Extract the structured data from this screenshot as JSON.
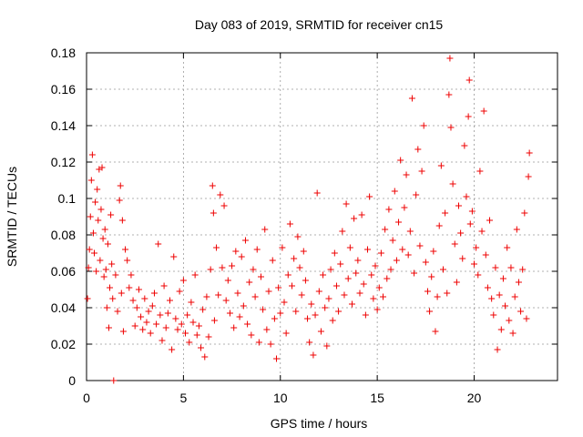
{
  "chart_data": {
    "type": "scatter",
    "title": "Day 083 of 2019, SRMTID for receiver cn15",
    "xlabel": "GPS time / hours",
    "ylabel": "SRMTID / TECUs",
    "xlim": [
      0,
      24.3
    ],
    "ylim": [
      0,
      0.18
    ],
    "xticks": [
      0,
      5,
      10,
      15,
      20
    ],
    "xtick_labels": [
      "0",
      "5",
      "10",
      "15",
      "20"
    ],
    "yticks": [
      0,
      0.02,
      0.04,
      0.06,
      0.08,
      0.1,
      0.12,
      0.14,
      0.16,
      0.18
    ],
    "ytick_labels": [
      "0",
      "0.02",
      "0.04",
      "0.06",
      "0.08",
      "0.1",
      "0.12",
      "0.14",
      "0.16",
      "0.18"
    ],
    "grid": true,
    "marker": "+",
    "color": "#ee0000",
    "series": [
      {
        "name": "SRMTID",
        "points": [
          [
            0.05,
            0.045
          ],
          [
            0.1,
            0.062
          ],
          [
            0.15,
            0.072
          ],
          [
            0.2,
            0.09
          ],
          [
            0.25,
            0.11
          ],
          [
            0.3,
            0.124
          ],
          [
            0.35,
            0.081
          ],
          [
            0.4,
            0.07
          ],
          [
            0.45,
            0.098
          ],
          [
            0.5,
            0.06
          ],
          [
            0.55,
            0.105
          ],
          [
            0.6,
            0.088
          ],
          [
            0.65,
            0.116
          ],
          [
            0.7,
            0.066
          ],
          [
            0.75,
            0.094
          ],
          [
            0.8,
            0.117
          ],
          [
            0.85,
            0.078
          ],
          [
            0.9,
            0.057
          ],
          [
            0.95,
            0.083
          ],
          [
            1.0,
            0.061
          ],
          [
            1.05,
            0.04
          ],
          [
            1.1,
            0.075
          ],
          [
            1.15,
            0.029
          ],
          [
            1.2,
            0.051
          ],
          [
            1.25,
            0.091
          ],
          [
            1.3,
            0.064
          ],
          [
            1.35,
            0.045
          ],
          [
            1.4,
            0.0
          ],
          [
            1.5,
            0.058
          ],
          [
            1.6,
            0.038
          ],
          [
            1.7,
            0.099
          ],
          [
            1.75,
            0.107
          ],
          [
            1.8,
            0.048
          ],
          [
            1.85,
            0.088
          ],
          [
            1.9,
            0.027
          ],
          [
            2.0,
            0.072
          ],
          [
            2.1,
            0.066
          ],
          [
            2.2,
            0.051
          ],
          [
            2.3,
            0.058
          ],
          [
            2.4,
            0.044
          ],
          [
            2.5,
            0.03
          ],
          [
            2.6,
            0.04
          ],
          [
            2.7,
            0.05
          ],
          [
            2.8,
            0.035
          ],
          [
            2.9,
            0.028
          ],
          [
            3.0,
            0.045
          ],
          [
            3.1,
            0.032
          ],
          [
            3.2,
            0.038
          ],
          [
            3.3,
            0.026
          ],
          [
            3.4,
            0.041
          ],
          [
            3.5,
            0.048
          ],
          [
            3.6,
            0.031
          ],
          [
            3.7,
            0.075
          ],
          [
            3.8,
            0.036
          ],
          [
            3.9,
            0.022
          ],
          [
            4.0,
            0.052
          ],
          [
            4.1,
            0.029
          ],
          [
            4.2,
            0.037
          ],
          [
            4.3,
            0.044
          ],
          [
            4.4,
            0.017
          ],
          [
            4.5,
            0.068
          ],
          [
            4.6,
            0.034
          ],
          [
            4.7,
            0.028
          ],
          [
            4.8,
            0.049
          ],
          [
            4.9,
            0.031
          ],
          [
            5.0,
            0.055
          ],
          [
            5.1,
            0.026
          ],
          [
            5.2,
            0.036
          ],
          [
            5.3,
            0.021
          ],
          [
            5.4,
            0.043
          ],
          [
            5.5,
            0.032
          ],
          [
            5.6,
            0.058
          ],
          [
            5.7,
            0.025
          ],
          [
            5.8,
            0.03
          ],
          [
            5.9,
            0.018
          ],
          [
            6.0,
            0.039
          ],
          [
            6.1,
            0.013
          ],
          [
            6.2,
            0.046
          ],
          [
            6.3,
            0.024
          ],
          [
            6.4,
            0.061
          ],
          [
            6.5,
            0.107
          ],
          [
            6.55,
            0.092
          ],
          [
            6.6,
            0.033
          ],
          [
            6.7,
            0.073
          ],
          [
            6.8,
            0.047
          ],
          [
            6.9,
            0.102
          ],
          [
            7.0,
            0.062
          ],
          [
            7.1,
            0.096
          ],
          [
            7.2,
            0.044
          ],
          [
            7.3,
            0.055
          ],
          [
            7.4,
            0.037
          ],
          [
            7.5,
            0.063
          ],
          [
            7.6,
            0.029
          ],
          [
            7.7,
            0.071
          ],
          [
            7.8,
            0.048
          ],
          [
            7.9,
            0.035
          ],
          [
            8.0,
            0.068
          ],
          [
            8.1,
            0.041
          ],
          [
            8.2,
            0.077
          ],
          [
            8.3,
            0.031
          ],
          [
            8.4,
            0.054
          ],
          [
            8.5,
            0.025
          ],
          [
            8.6,
            0.061
          ],
          [
            8.7,
            0.046
          ],
          [
            8.8,
            0.072
          ],
          [
            8.9,
            0.021
          ],
          [
            9.0,
            0.057
          ],
          [
            9.1,
            0.039
          ],
          [
            9.2,
            0.083
          ],
          [
            9.3,
            0.028
          ],
          [
            9.4,
            0.049
          ],
          [
            9.5,
            0.02
          ],
          [
            9.6,
            0.066
          ],
          [
            9.7,
            0.034
          ],
          [
            9.8,
            0.012
          ],
          [
            9.9,
            0.051
          ],
          [
            10.0,
            0.037
          ],
          [
            10.1,
            0.073
          ],
          [
            10.2,
            0.043
          ],
          [
            10.3,
            0.026
          ],
          [
            10.4,
            0.058
          ],
          [
            10.5,
            0.086
          ],
          [
            10.6,
            0.052
          ],
          [
            10.7,
            0.067
          ],
          [
            10.8,
            0.038
          ],
          [
            10.9,
            0.079
          ],
          [
            11.0,
            0.062
          ],
          [
            11.1,
            0.047
          ],
          [
            11.2,
            0.071
          ],
          [
            11.3,
            0.055
          ],
          [
            11.4,
            0.034
          ],
          [
            11.5,
            0.021
          ],
          [
            11.6,
            0.042
          ],
          [
            11.7,
            0.014
          ],
          [
            11.8,
            0.036
          ],
          [
            11.9,
            0.103
          ],
          [
            12.0,
            0.049
          ],
          [
            12.1,
            0.027
          ],
          [
            12.2,
            0.058
          ],
          [
            12.3,
            0.04
          ],
          [
            12.4,
            0.019
          ],
          [
            12.5,
            0.045
          ],
          [
            12.6,
            0.061
          ],
          [
            12.7,
            0.033
          ],
          [
            12.8,
            0.07
          ],
          [
            12.9,
            0.052
          ],
          [
            13.0,
            0.038
          ],
          [
            13.1,
            0.064
          ],
          [
            13.2,
            0.082
          ],
          [
            13.3,
            0.047
          ],
          [
            13.4,
            0.097
          ],
          [
            13.5,
            0.056
          ],
          [
            13.6,
            0.073
          ],
          [
            13.7,
            0.042
          ],
          [
            13.8,
            0.089
          ],
          [
            13.9,
            0.059
          ],
          [
            14.0,
            0.066
          ],
          [
            14.1,
            0.048
          ],
          [
            14.2,
            0.091
          ],
          [
            14.3,
            0.053
          ],
          [
            14.4,
            0.036
          ],
          [
            14.5,
            0.072
          ],
          [
            14.6,
            0.101
          ],
          [
            14.7,
            0.058
          ],
          [
            14.8,
            0.045
          ],
          [
            14.9,
            0.063
          ],
          [
            15.0,
            0.039
          ],
          [
            15.1,
            0.051
          ],
          [
            15.2,
            0.07
          ],
          [
            15.3,
            0.046
          ],
          [
            15.4,
            0.083
          ],
          [
            15.5,
            0.056
          ],
          [
            15.6,
            0.094
          ],
          [
            15.7,
            0.061
          ],
          [
            15.8,
            0.077
          ],
          [
            15.9,
            0.104
          ],
          [
            16.0,
            0.066
          ],
          [
            16.1,
            0.087
          ],
          [
            16.2,
            0.121
          ],
          [
            16.3,
            0.072
          ],
          [
            16.4,
            0.095
          ],
          [
            16.5,
            0.113
          ],
          [
            16.6,
            0.069
          ],
          [
            16.7,
            0.082
          ],
          [
            16.8,
            0.155
          ],
          [
            16.9,
            0.059
          ],
          [
            17.0,
            0.102
          ],
          [
            17.1,
            0.127
          ],
          [
            17.2,
            0.074
          ],
          [
            17.3,
            0.115
          ],
          [
            17.4,
            0.14
          ],
          [
            17.5,
            0.065
          ],
          [
            17.6,
            0.049
          ],
          [
            17.7,
            0.038
          ],
          [
            17.8,
            0.057
          ],
          [
            17.9,
            0.071
          ],
          [
            18.0,
            0.027
          ],
          [
            18.1,
            0.046
          ],
          [
            18.2,
            0.085
          ],
          [
            18.3,
            0.118
          ],
          [
            18.4,
            0.061
          ],
          [
            18.5,
            0.092
          ],
          [
            18.6,
            0.048
          ],
          [
            18.7,
            0.157
          ],
          [
            18.75,
            0.177
          ],
          [
            18.8,
            0.139
          ],
          [
            18.9,
            0.108
          ],
          [
            19.0,
            0.075
          ],
          [
            19.1,
            0.054
          ],
          [
            19.2,
            0.096
          ],
          [
            19.3,
            0.081
          ],
          [
            19.4,
            0.067
          ],
          [
            19.5,
            0.129
          ],
          [
            19.6,
            0.101
          ],
          [
            19.7,
            0.145
          ],
          [
            19.75,
            0.165
          ],
          [
            19.8,
            0.086
          ],
          [
            19.9,
            0.093
          ],
          [
            20.0,
            0.064
          ],
          [
            20.1,
            0.073
          ],
          [
            20.2,
            0.058
          ],
          [
            20.3,
            0.115
          ],
          [
            20.4,
            0.082
          ],
          [
            20.5,
            0.148
          ],
          [
            20.6,
            0.069
          ],
          [
            20.7,
            0.051
          ],
          [
            20.8,
            0.088
          ],
          [
            20.9,
            0.045
          ],
          [
            21.0,
            0.036
          ],
          [
            21.1,
            0.062
          ],
          [
            21.2,
            0.017
          ],
          [
            21.3,
            0.047
          ],
          [
            21.4,
            0.028
          ],
          [
            21.5,
            0.056
          ],
          [
            21.6,
            0.041
          ],
          [
            21.7,
            0.073
          ],
          [
            21.8,
            0.033
          ],
          [
            21.9,
            0.062
          ],
          [
            22.0,
            0.026
          ],
          [
            22.1,
            0.046
          ],
          [
            22.2,
            0.083
          ],
          [
            22.3,
            0.054
          ],
          [
            22.4,
            0.038
          ],
          [
            22.5,
            0.061
          ],
          [
            22.6,
            0.092
          ],
          [
            22.7,
            0.034
          ],
          [
            22.8,
            0.112
          ],
          [
            22.85,
            0.125
          ]
        ]
      }
    ]
  }
}
